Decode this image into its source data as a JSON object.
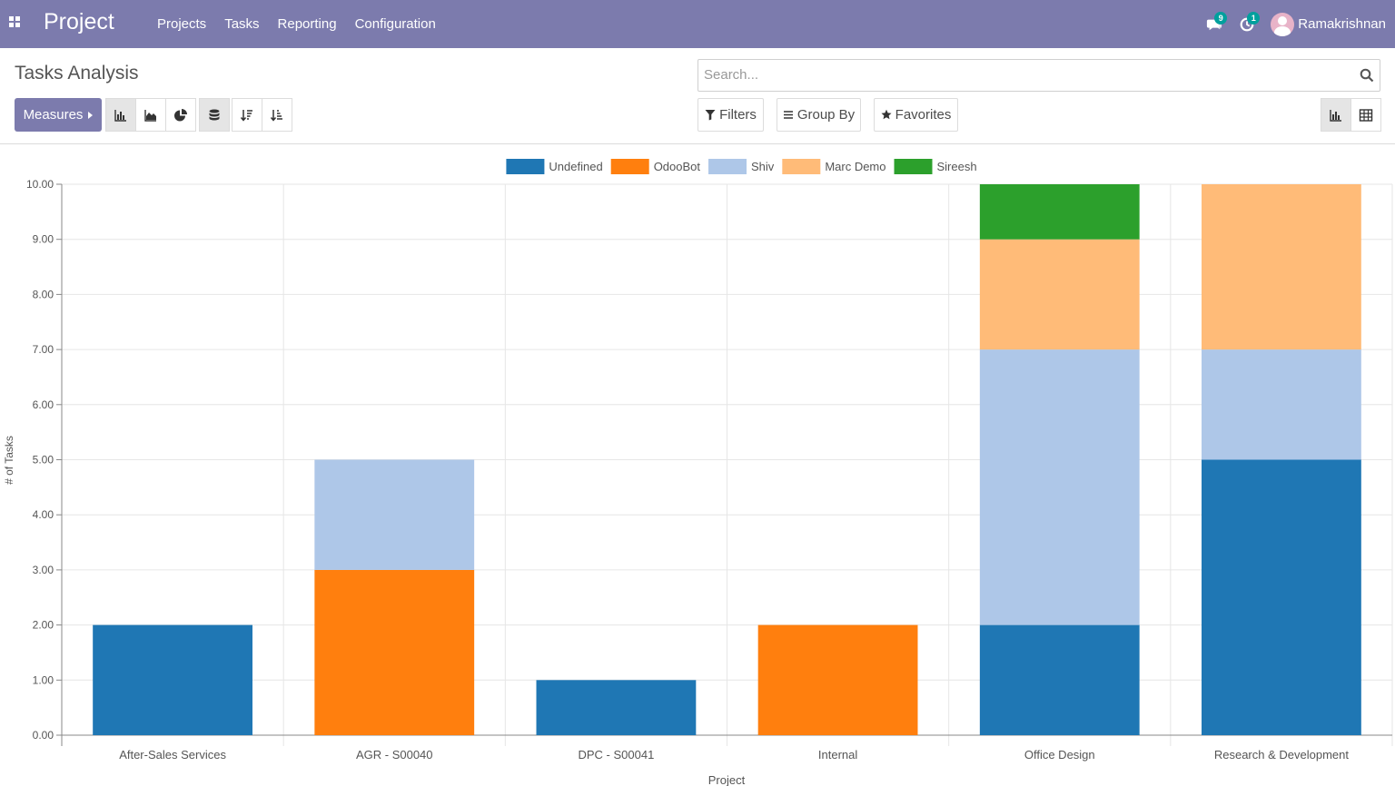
{
  "navbar": {
    "brand": "Project",
    "menu": [
      "Projects",
      "Tasks",
      "Reporting",
      "Configuration"
    ],
    "messages_count": "9",
    "activities_count": "1",
    "user_name": "Ramakrishnan",
    "icons": {
      "apps": "apps-grid-icon",
      "messages": "chat-icon",
      "activities": "clock-icon"
    }
  },
  "control_panel": {
    "title": "Tasks Analysis",
    "search_placeholder": "Search...",
    "measures_label": "Measures",
    "filters_label": "Filters",
    "groupby_label": "Group By",
    "favorites_label": "Favorites"
  },
  "colors": {
    "brand": "#7c7bad",
    "series": [
      "#1f77b4",
      "#ff7f0e",
      "#aec7e8",
      "#ffbb78",
      "#2ca02c"
    ]
  },
  "chart_data": {
    "type": "bar",
    "stacked": true,
    "xlabel": "Project",
    "ylabel": "# of Tasks",
    "ylim": [
      0,
      10
    ],
    "yticks": [
      "0.00",
      "1.00",
      "2.00",
      "3.00",
      "4.00",
      "5.00",
      "6.00",
      "7.00",
      "8.00",
      "9.00",
      "10.00"
    ],
    "grid": true,
    "legend_position": "top",
    "categories": [
      "After-Sales Services",
      "AGR - S00040",
      "DPC - S00041",
      "Internal",
      "Office Design",
      "Research & Development"
    ],
    "series": [
      {
        "name": "Undefined",
        "color": "#1f77b4",
        "values": [
          2,
          0,
          1,
          0,
          2,
          5
        ]
      },
      {
        "name": "OdooBot",
        "color": "#ff7f0e",
        "values": [
          0,
          3,
          0,
          2,
          0,
          0
        ]
      },
      {
        "name": "Shiv",
        "color": "#aec7e8",
        "values": [
          0,
          2,
          0,
          0,
          5,
          2
        ]
      },
      {
        "name": "Marc Demo",
        "color": "#ffbb78",
        "values": [
          0,
          0,
          0,
          0,
          2,
          3
        ]
      },
      {
        "name": "Sireesh",
        "color": "#2ca02c",
        "values": [
          0,
          0,
          0,
          0,
          1,
          0
        ]
      }
    ]
  }
}
